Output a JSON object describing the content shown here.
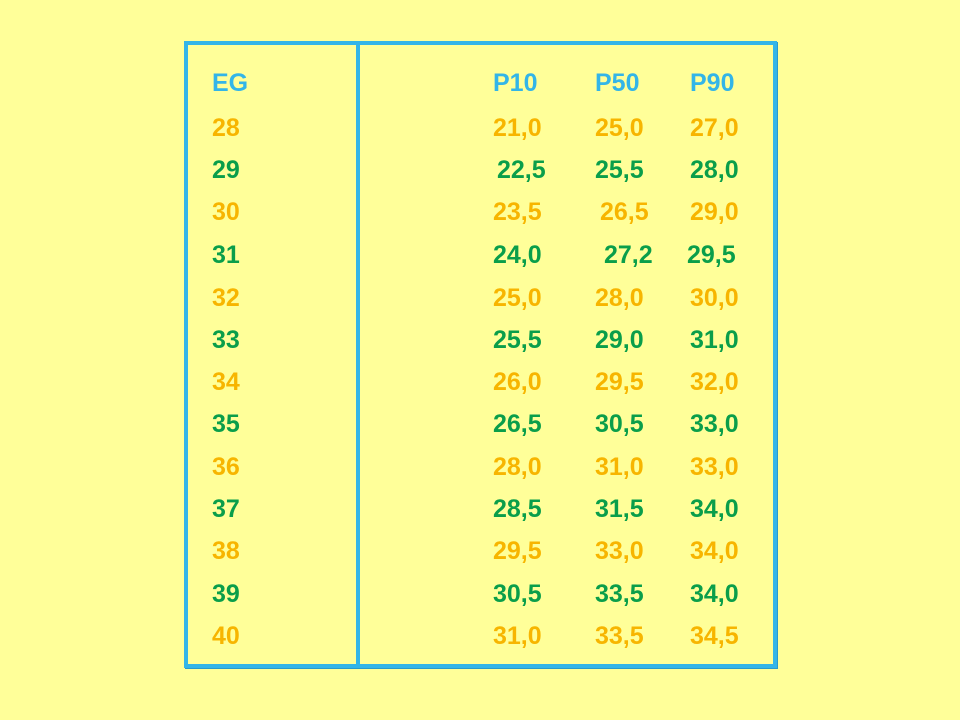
{
  "table": {
    "headers": {
      "eg": "EG",
      "p10": "P10",
      "p50": "P50",
      "p90": "P90"
    },
    "rows": [
      {
        "eg": "28",
        "p10": "21,0",
        "p50": "25,0",
        "p90": "27,0",
        "color": "#f7b500"
      },
      {
        "eg": "29",
        "p10": "22,5",
        "p50": "25,5",
        "p90": "28,0",
        "color": "#0a9e4a"
      },
      {
        "eg": "30",
        "p10": "23,5",
        "p50": "26,5",
        "p90": "29,0",
        "color": "#f7b500"
      },
      {
        "eg": "31",
        "p10": "24,0",
        "p50": "27,2",
        "p90": "29,5",
        "color": "#0a9e4a"
      },
      {
        "eg": "32",
        "p10": "25,0",
        "p50": "28,0",
        "p90": "30,0",
        "color": "#f7b500"
      },
      {
        "eg": "33",
        "p10": "25,5",
        "p50": "29,0",
        "p90": "31,0",
        "color": "#0a9e4a"
      },
      {
        "eg": "34",
        "p10": "26,0",
        "p50": "29,5",
        "p90": "32,0",
        "color": "#f7b500"
      },
      {
        "eg": "35",
        "p10": "26,5",
        "p50": "30,5",
        "p90": "33,0",
        "color": "#0a9e4a"
      },
      {
        "eg": "36",
        "p10": "28,0",
        "p50": "31,0",
        "p90": "33,0",
        "color": "#f7b500"
      },
      {
        "eg": "37",
        "p10": "28,5",
        "p50": "31,5",
        "p90": "34,0",
        "color": "#0a9e4a"
      },
      {
        "eg": "38",
        "p10": "29,5",
        "p50": "33,0",
        "p90": "34,0",
        "color": "#f7b500"
      },
      {
        "eg": "39",
        "p10": "30,5",
        "p50": "33,5",
        "p90": "34,0",
        "color": "#0a9e4a"
      },
      {
        "eg": "40",
        "p10": "31,0",
        "p50": "33,5",
        "p90": "34,5",
        "color": "#f7b500"
      }
    ]
  },
  "colors": {
    "background": "#ffff99",
    "border": "#33b5e8",
    "header": "#33b5e8",
    "orange": "#f7b500",
    "green": "#0a9e4a"
  }
}
